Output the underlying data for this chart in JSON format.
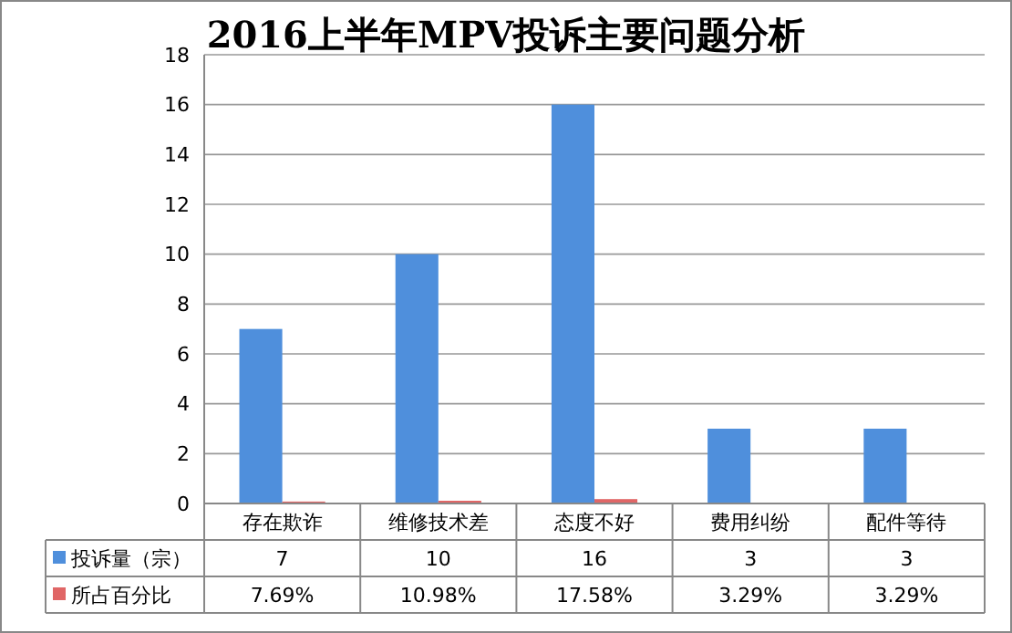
{
  "chart_data": {
    "type": "bar",
    "title": "2016上半年MPV投诉主要问题分析",
    "categories": [
      "存在欺诈",
      "维修技术差",
      "态度不好",
      "费用纠纷",
      "配件等待"
    ],
    "series": [
      {
        "name": "投诉量（宗）",
        "color": "#4f8fdc",
        "values": [
          7,
          10,
          16,
          3,
          3
        ],
        "value_labels": [
          "7",
          "10",
          "16",
          "3",
          "3"
        ]
      },
      {
        "name": "所占百分比",
        "color": "#e06666",
        "values": [
          0.0769,
          0.1098,
          0.1758,
          0.0329,
          0.0329
        ],
        "value_labels": [
          "7.69%",
          "10.98%",
          "17.58%",
          "3.29%",
          "3.29%"
        ]
      }
    ],
    "ylim": [
      0,
      18
    ],
    "yticks": [
      0,
      2,
      4,
      6,
      8,
      10,
      12,
      14,
      16,
      18
    ],
    "grid": "y",
    "legend": "bottom"
  }
}
